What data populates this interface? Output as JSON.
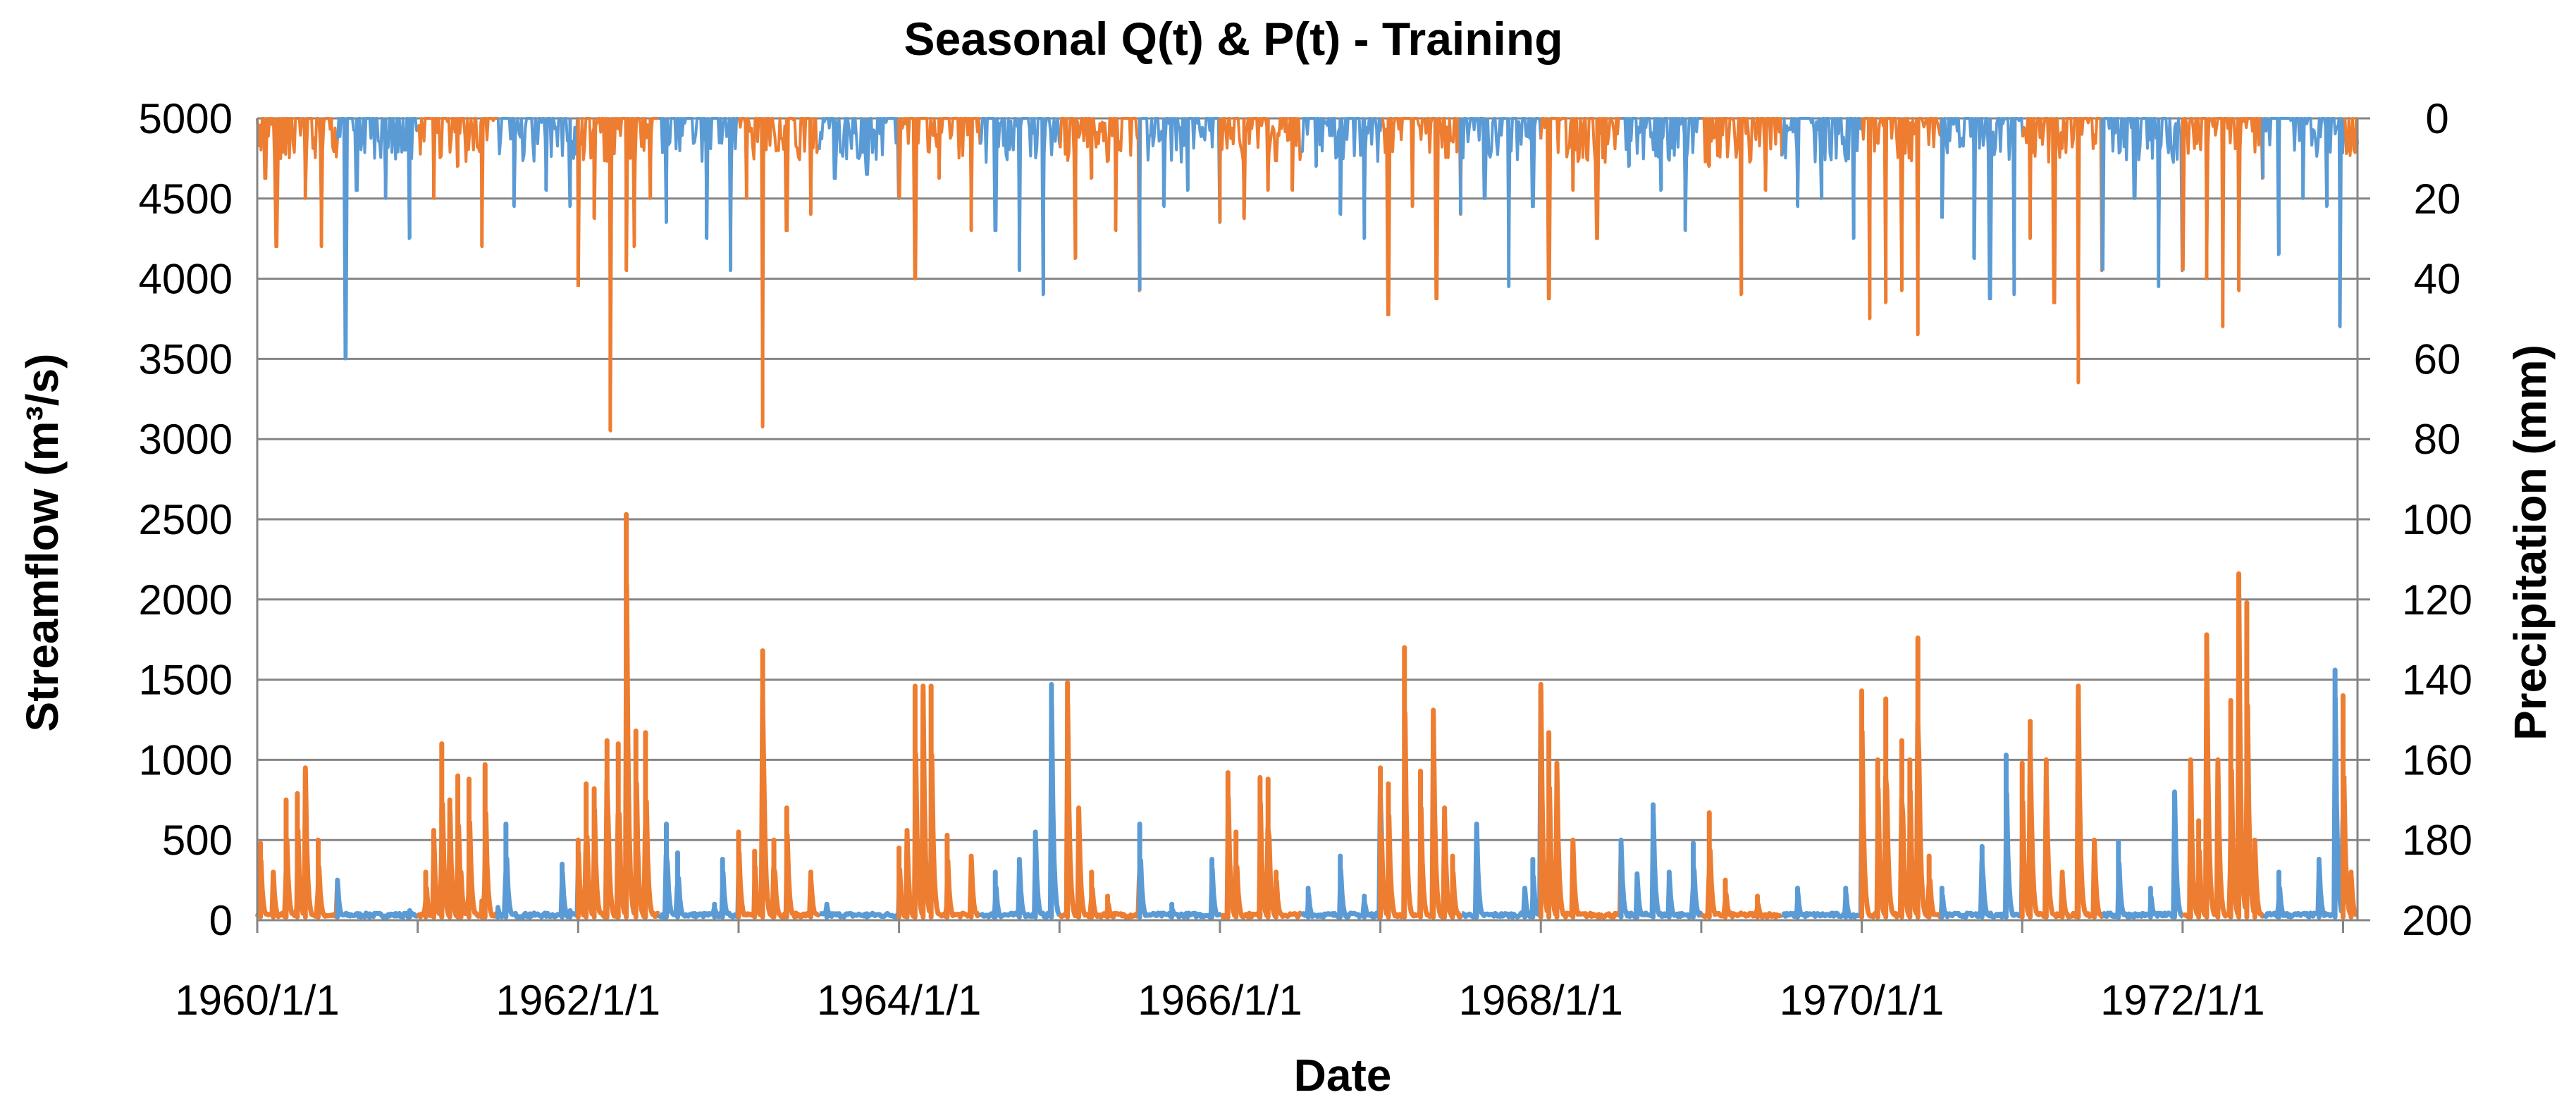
{
  "chart_data": {
    "type": "line",
    "title": "Seasonal Q(t) & P(t) - Training",
    "xlabel": "Date",
    "ylabel": "Streamflow (m³/s)",
    "y2label": "Precipitation (mm)",
    "x_date_range": [
      "1960/1/1",
      "1973/2/1"
    ],
    "x_tick_labels": [
      "1960/1/1",
      "1962/1/1",
      "1964/1/1",
      "1966/1/1",
      "1968/1/1",
      "1970/1/1",
      "1972/1/1"
    ],
    "x_tick_years": [
      1960,
      1962,
      1964,
      1966,
      1968,
      1970,
      1972
    ],
    "ylim": [
      0,
      5000
    ],
    "y_ticks": [
      0,
      500,
      1000,
      1500,
      2000,
      2500,
      3000,
      3500,
      4000,
      4500,
      5000
    ],
    "y2lim": [
      0,
      200
    ],
    "y2_inverted": true,
    "y2_ticks": [
      0,
      20,
      40,
      60,
      80,
      100,
      120,
      140,
      160,
      180,
      200
    ],
    "grid": true,
    "season_colors": [
      "#ED7D31",
      "#5B9BD5"
    ],
    "series": [
      {
        "name": "Streamflow Q(t)",
        "axis": "left",
        "seasonal_coloring": true,
        "baseline": 20,
        "peaks": [
          [
            1960.02,
            480
          ],
          [
            1960.1,
            300
          ],
          [
            1960.18,
            750
          ],
          [
            1960.25,
            790
          ],
          [
            1960.3,
            950
          ],
          [
            1960.38,
            500
          ],
          [
            1960.5,
            250
          ],
          [
            1960.7,
            40
          ],
          [
            1960.95,
            60
          ],
          [
            1961.05,
            300
          ],
          [
            1961.1,
            560
          ],
          [
            1961.15,
            1100
          ],
          [
            1961.2,
            750
          ],
          [
            1961.27,
            300
          ],
          [
            1961.4,
            120
          ],
          [
            1961.5,
            80
          ],
          [
            1961.7,
            40
          ],
          [
            1961.95,
            60
          ],
          [
            1961.1,
            200
          ],
          [
            1961.15,
            700
          ],
          [
            1961.25,
            900
          ],
          [
            1961.32,
            880
          ],
          [
            1961.42,
            970
          ],
          [
            1961.55,
            600
          ],
          [
            1961.9,
            350
          ],
          [
            1962.0,
            500
          ],
          [
            1962.05,
            850
          ],
          [
            1962.1,
            820
          ],
          [
            1962.18,
            1120
          ],
          [
            1962.25,
            1100
          ],
          [
            1962.3,
            2530
          ],
          [
            1962.36,
            1180
          ],
          [
            1962.42,
            1170
          ],
          [
            1962.55,
            600
          ],
          [
            1962.62,
            420
          ],
          [
            1962.85,
            100
          ],
          [
            1962.9,
            380
          ],
          [
            1963.0,
            550
          ],
          [
            1963.1,
            430
          ],
          [
            1963.15,
            1680
          ],
          [
            1963.22,
            500
          ],
          [
            1963.3,
            700
          ],
          [
            1963.45,
            300
          ],
          [
            1963.55,
            100
          ],
          [
            1963.8,
            40
          ],
          [
            1964.0,
            450
          ],
          [
            1964.05,
            560
          ],
          [
            1964.1,
            1460
          ],
          [
            1964.15,
            1460
          ],
          [
            1964.2,
            1460
          ],
          [
            1964.3,
            530
          ],
          [
            1964.45,
            400
          ],
          [
            1964.6,
            300
          ],
          [
            1964.75,
            380
          ],
          [
            1964.85,
            550
          ],
          [
            1964.95,
            1470
          ],
          [
            1965.05,
            1480
          ],
          [
            1965.12,
            700
          ],
          [
            1965.2,
            300
          ],
          [
            1965.3,
            150
          ],
          [
            1965.5,
            600
          ],
          [
            1965.7,
            100
          ],
          [
            1965.95,
            380
          ],
          [
            1966.05,
            920
          ],
          [
            1966.1,
            550
          ],
          [
            1966.25,
            890
          ],
          [
            1966.3,
            880
          ],
          [
            1966.35,
            300
          ],
          [
            1966.55,
            200
          ],
          [
            1966.75,
            400
          ],
          [
            1966.9,
            150
          ],
          [
            1967.0,
            950
          ],
          [
            1967.05,
            850
          ],
          [
            1967.15,
            1700
          ],
          [
            1967.25,
            930
          ],
          [
            1967.33,
            1310
          ],
          [
            1967.4,
            700
          ],
          [
            1967.45,
            400
          ],
          [
            1967.6,
            600
          ],
          [
            1967.9,
            200
          ],
          [
            1967.95,
            380
          ],
          [
            1968.0,
            1470
          ],
          [
            1968.05,
            1170
          ],
          [
            1968.1,
            980
          ],
          [
            1968.2,
            500
          ],
          [
            1968.5,
            500
          ],
          [
            1968.6,
            290
          ],
          [
            1968.7,
            720
          ],
          [
            1968.8,
            300
          ],
          [
            1968.95,
            480
          ],
          [
            1969.05,
            670
          ],
          [
            1969.15,
            250
          ],
          [
            1969.35,
            150
          ],
          [
            1969.6,
            200
          ],
          [
            1969.9,
            200
          ],
          [
            1970.0,
            1430
          ],
          [
            1970.1,
            1000
          ],
          [
            1970.15,
            1380
          ],
          [
            1970.25,
            1120
          ],
          [
            1970.3,
            1000
          ],
          [
            1970.35,
            1760
          ],
          [
            1970.42,
            400
          ],
          [
            1970.5,
            200
          ],
          [
            1970.75,
            460
          ],
          [
            1970.9,
            1030
          ],
          [
            1971.0,
            980
          ],
          [
            1971.05,
            1240
          ],
          [
            1971.15,
            1000
          ],
          [
            1971.25,
            300
          ],
          [
            1971.35,
            1460
          ],
          [
            1971.45,
            500
          ],
          [
            1971.6,
            490
          ],
          [
            1971.8,
            200
          ],
          [
            1971.95,
            800
          ],
          [
            1972.05,
            1000
          ],
          [
            1972.1,
            620
          ],
          [
            1972.15,
            1780
          ],
          [
            1972.22,
            1000
          ],
          [
            1972.3,
            1370
          ],
          [
            1972.35,
            2160
          ],
          [
            1972.4,
            1980
          ],
          [
            1972.45,
            500
          ],
          [
            1972.6,
            300
          ],
          [
            1972.85,
            380
          ],
          [
            1972.95,
            1560
          ],
          [
            1973.0,
            1400
          ],
          [
            1973.05,
            300
          ]
        ]
      },
      {
        "name": "Precipitation P(t)",
        "axis": "right",
        "seasonal_coloring": true,
        "peaks": [
          [
            1960.05,
            15
          ],
          [
            1960.12,
            32
          ],
          [
            1960.3,
            20
          ],
          [
            1960.4,
            32
          ],
          [
            1960.55,
            60
          ],
          [
            1960.62,
            18
          ],
          [
            1960.8,
            20
          ],
          [
            1960.95,
            30
          ],
          [
            1961.1,
            20
          ],
          [
            1961.25,
            12
          ],
          [
            1961.4,
            32
          ],
          [
            1961.6,
            22
          ],
          [
            1961.8,
            18
          ],
          [
            1961.95,
            22
          ],
          [
            1962.0,
            42
          ],
          [
            1962.1,
            25
          ],
          [
            1962.2,
            78
          ],
          [
            1962.3,
            38
          ],
          [
            1962.35,
            32
          ],
          [
            1962.45,
            20
          ],
          [
            1962.55,
            26
          ],
          [
            1962.8,
            30
          ],
          [
            1962.95,
            38
          ],
          [
            1963.05,
            20
          ],
          [
            1963.15,
            77
          ],
          [
            1963.3,
            28
          ],
          [
            1963.45,
            24
          ],
          [
            1963.6,
            15
          ],
          [
            1963.8,
            14
          ],
          [
            1964.0,
            20
          ],
          [
            1964.1,
            40
          ],
          [
            1964.25,
            15
          ],
          [
            1964.45,
            28
          ],
          [
            1964.6,
            28
          ],
          [
            1964.75,
            38
          ],
          [
            1964.9,
            44
          ],
          [
            1965.1,
            35
          ],
          [
            1965.2,
            15
          ],
          [
            1965.35,
            28
          ],
          [
            1965.5,
            43
          ],
          [
            1965.65,
            22
          ],
          [
            1965.8,
            18
          ],
          [
            1966.0,
            26
          ],
          [
            1966.15,
            25
          ],
          [
            1966.3,
            18
          ],
          [
            1966.45,
            18
          ],
          [
            1966.6,
            12
          ],
          [
            1966.75,
            24
          ],
          [
            1966.9,
            30
          ],
          [
            1967.05,
            49
          ],
          [
            1967.2,
            22
          ],
          [
            1967.35,
            45
          ],
          [
            1967.5,
            24
          ],
          [
            1967.65,
            20
          ],
          [
            1967.8,
            42
          ],
          [
            1967.95,
            22
          ],
          [
            1968.05,
            45
          ],
          [
            1968.2,
            18
          ],
          [
            1968.35,
            30
          ],
          [
            1968.55,
            12
          ],
          [
            1968.75,
            18
          ],
          [
            1968.9,
            28
          ],
          [
            1969.05,
            12
          ],
          [
            1969.25,
            44
          ],
          [
            1969.4,
            18
          ],
          [
            1969.6,
            22
          ],
          [
            1969.75,
            20
          ],
          [
            1969.95,
            30
          ],
          [
            1970.05,
            50
          ],
          [
            1970.15,
            46
          ],
          [
            1970.25,
            43
          ],
          [
            1970.35,
            54
          ],
          [
            1970.5,
            25
          ],
          [
            1970.7,
            35
          ],
          [
            1970.8,
            45
          ],
          [
            1970.95,
            44
          ],
          [
            1971.05,
            30
          ],
          [
            1971.2,
            46
          ],
          [
            1971.35,
            66
          ],
          [
            1971.5,
            38
          ],
          [
            1971.7,
            20
          ],
          [
            1971.85,
            42
          ],
          [
            1972.0,
            38
          ],
          [
            1972.15,
            40
          ],
          [
            1972.25,
            52
          ],
          [
            1972.35,
            43
          ],
          [
            1972.5,
            15
          ],
          [
            1972.6,
            34
          ],
          [
            1972.75,
            20
          ],
          [
            1972.9,
            22
          ],
          [
            1972.98,
            52
          ]
        ]
      }
    ]
  }
}
